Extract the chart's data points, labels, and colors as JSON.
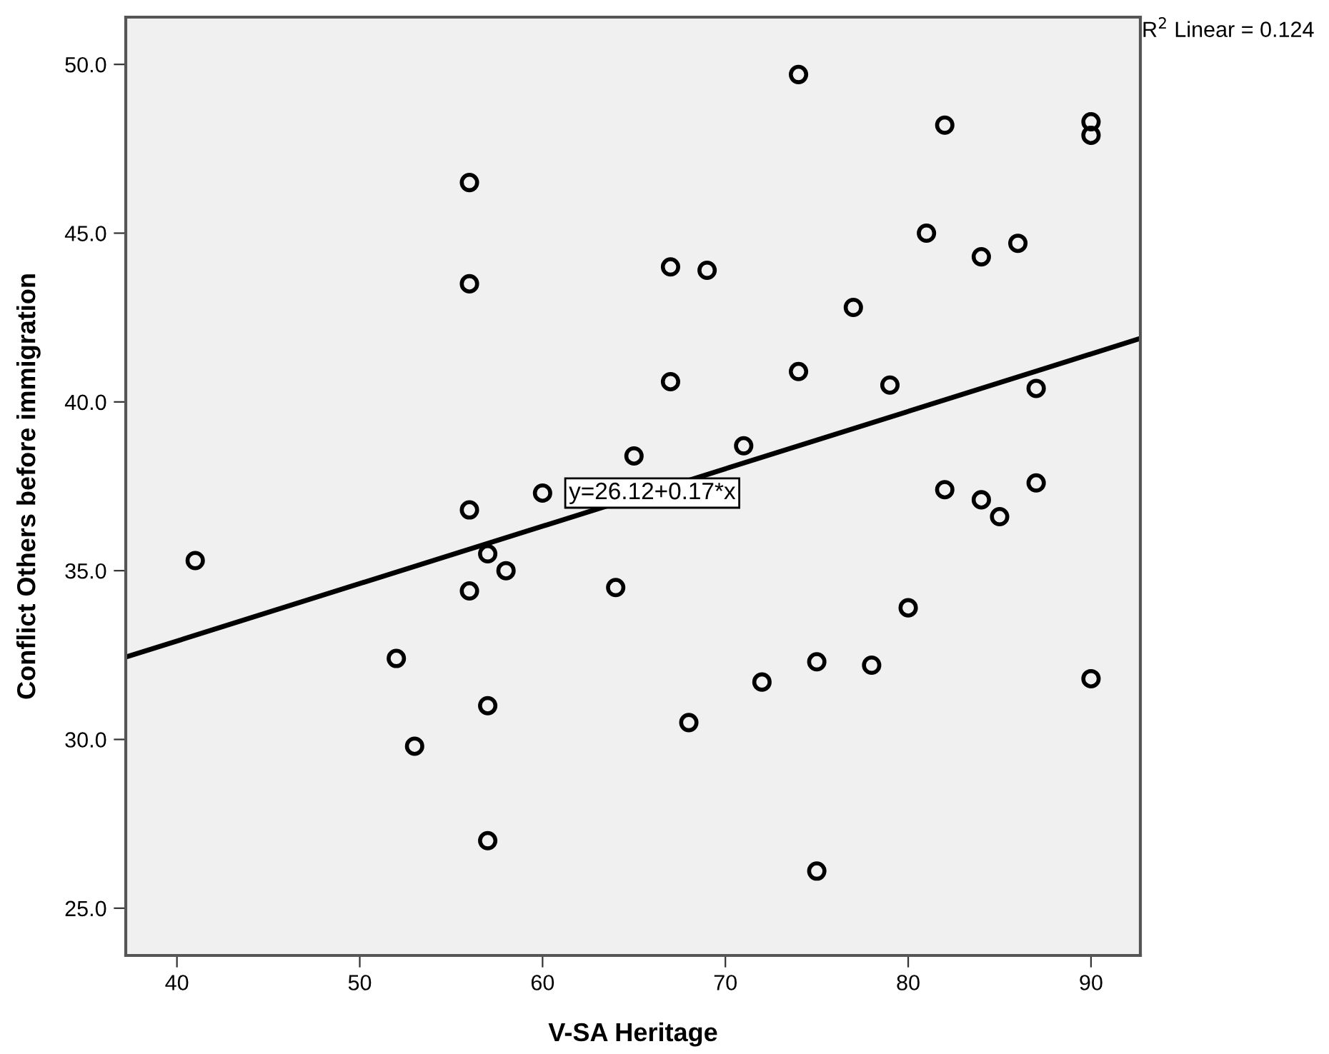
{
  "chart_data": {
    "type": "scatter",
    "xlabel": "V-SA Heritage",
    "ylabel": "Conflict Others before immigration",
    "xlim": [
      37.2,
      92.7
    ],
    "xticks": [
      40,
      50,
      60,
      70,
      80,
      90
    ],
    "ylim": [
      23.6,
      51.4
    ],
    "yticks": [
      {
        "value": 25,
        "label": "25.0"
      },
      {
        "value": 30,
        "label": "30.0"
      },
      {
        "value": 35,
        "label": "35.0"
      },
      {
        "value": 40,
        "label": "40.0"
      },
      {
        "value": 45,
        "label": "45.0"
      },
      {
        "value": 50,
        "label": "50.0"
      }
    ],
    "grid": false,
    "legend": false,
    "series": [
      {
        "color": "#000000",
        "marker": "circle",
        "x": [
          41,
          52,
          53,
          56,
          56,
          56,
          56,
          57,
          57,
          57,
          58,
          60,
          64,
          65,
          67,
          67,
          68,
          69,
          71,
          72,
          74,
          74,
          75,
          75,
          77,
          78,
          79,
          80,
          81,
          82,
          82,
          84,
          84,
          85,
          86,
          87,
          87,
          90,
          90,
          90
        ],
        "values": [
          35.3,
          32.4,
          29.8,
          46.5,
          43.5,
          36.8,
          34.4,
          35.5,
          31.0,
          27.0,
          35.0,
          37.3,
          34.5,
          38.4,
          44.0,
          40.6,
          30.5,
          43.9,
          38.7,
          31.7,
          49.7,
          40.9,
          32.3,
          26.1,
          42.8,
          32.2,
          40.5,
          33.9,
          45.0,
          48.2,
          37.4,
          44.3,
          37.1,
          36.6,
          44.7,
          40.4,
          37.6,
          48.3,
          47.9,
          31.8
        ]
      },
      {
        "type": "line",
        "color": "#000000",
        "marker": "none",
        "line_style": "solid",
        "x": [
          37.2,
          92.7
        ],
        "values": [
          32.44,
          41.88
        ]
      }
    ],
    "annotations": [
      {
        "text": "y=26.12+0.17*x",
        "x": 66,
        "y": 37.3
      },
      "R$^{2}$ Linear = 0.124"
    ]
  }
}
